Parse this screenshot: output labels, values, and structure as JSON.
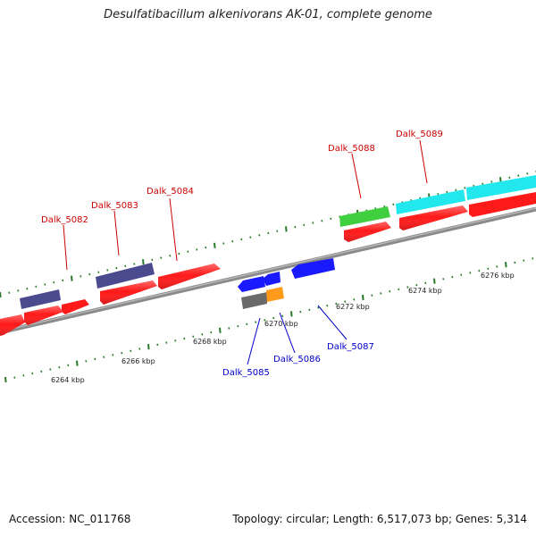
{
  "title": "Desulfatibacillum alkenivorans AK-01, complete genome",
  "footer": {
    "accession": "Accession: NC_011768",
    "summary": "Topology: circular; Length: 6,517,073 bp; Genes: 5,314"
  },
  "scale": {
    "unit": "kbp",
    "labels": [
      "6264 kbp",
      "6266 kbp",
      "6268 kbp",
      "6270 kbp",
      "6272 kbp",
      "6274 kbp",
      "6276 kbp"
    ]
  },
  "colors": {
    "forward_cds": "#ff1a1a",
    "reverse_cds": "#1a1aff",
    "forward_label": "#cc0000",
    "reverse_label": "#0000cc",
    "tick": "#2a7a2a",
    "backbone": "#8a8a8a",
    "purple": "#4a4a8e",
    "green": "#3fcf3f",
    "cyan": "#22e8ee",
    "orange": "#ff9a1a",
    "gray": "#6a6a6a"
  },
  "gene_labels": {
    "dalk_5082": "Dalk_5082",
    "dalk_5083": "Dalk_5083",
    "dalk_5084": "Dalk_5084",
    "dalk_5085": "Dalk_5085",
    "dalk_5086": "Dalk_5086",
    "dalk_5087": "Dalk_5087",
    "dalk_5088": "Dalk_5088",
    "dalk_5089": "Dalk_5089"
  }
}
